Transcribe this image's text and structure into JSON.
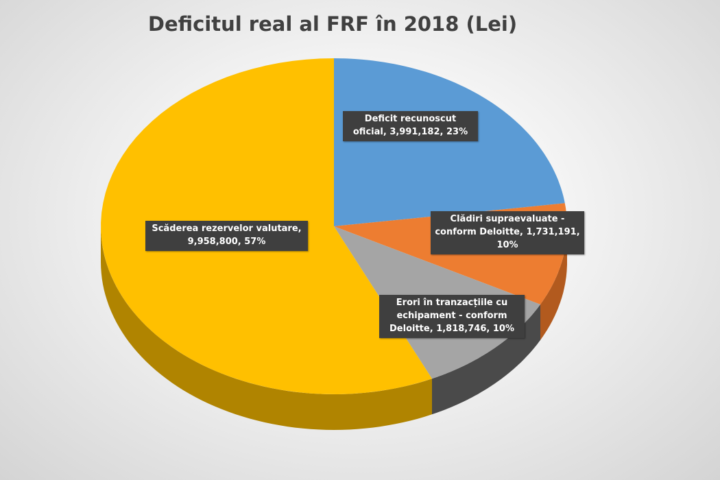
{
  "chart_data": {
    "type": "pie",
    "title": "Deficitul real al FRF în 2018 (Lei)",
    "categories": [
      "Deficit recunoscut oficial",
      "Clădiri supraevaluate - conform Deloitte",
      "Erori în tranzacțiile cu echipament - conform Deloitte",
      "Scăderea rezervelor valutare"
    ],
    "values": [
      3991182,
      1731191,
      1818746,
      9958800
    ],
    "value_labels": [
      "3,991,182",
      "1,731,191",
      "1,818,746",
      "9,958,800"
    ],
    "percents": [
      23,
      10,
      10,
      57
    ],
    "percent_labels": [
      "23%",
      "10%",
      "10%",
      "57%"
    ],
    "colors": [
      "#5b9bd5",
      "#ed7d31",
      "#a5a5a5",
      "#ffc000"
    ],
    "side_colors": [
      "#3d6e9a",
      "#b25a1e",
      "#4a4a4a",
      "#b08400"
    ]
  }
}
